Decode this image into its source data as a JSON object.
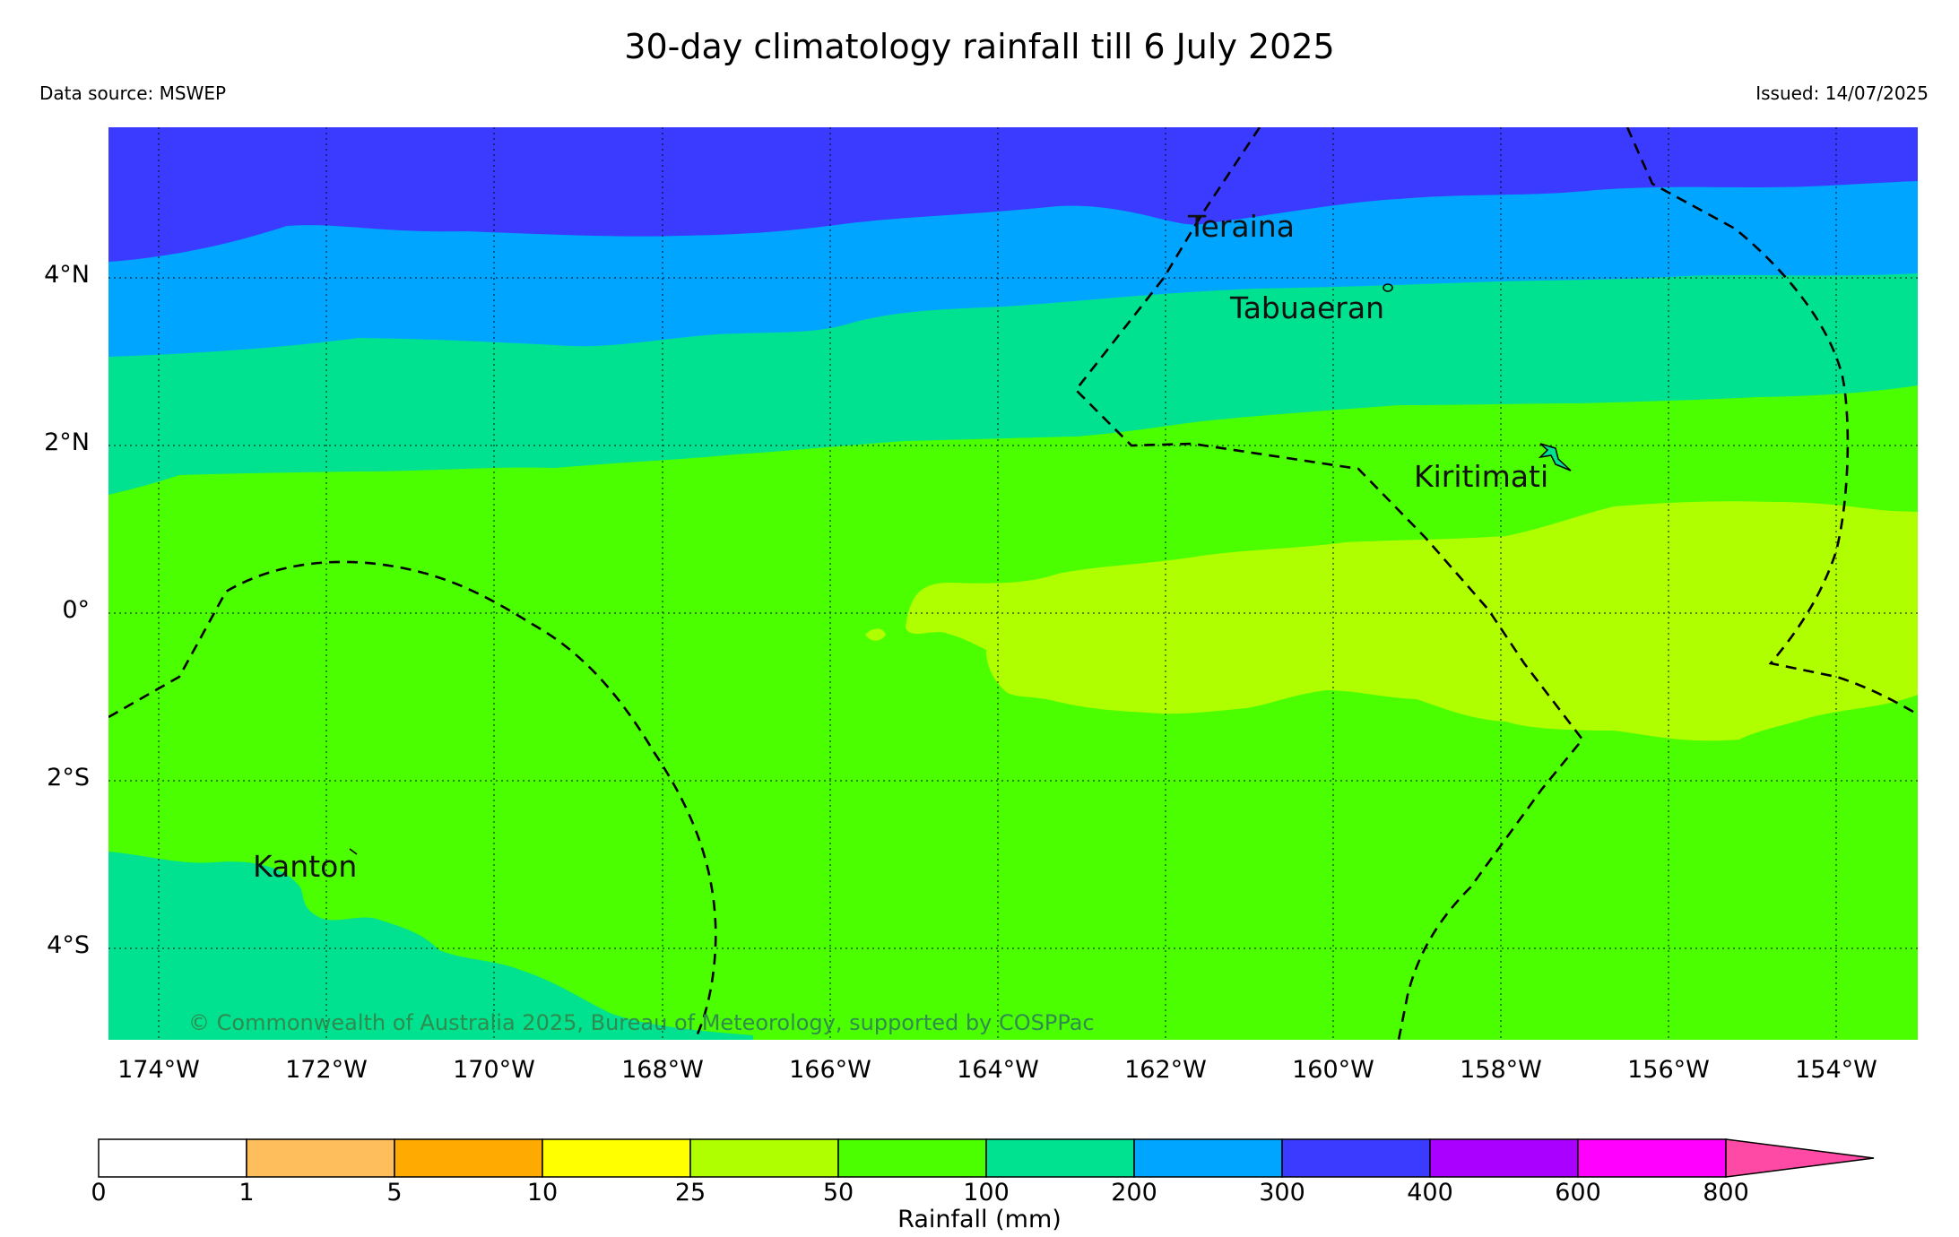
{
  "title": "30-day climatology rainfall till 6 July 2025",
  "data_source": "Data source: MSWEP",
  "issued": "Issued: 14/07/2025",
  "copyright": "© Commonwealth of Australia 2025, Bureau of Meteorology, supported by COSPPac",
  "lat_labels": [
    "4°N",
    "2°N",
    "0°",
    "2°S",
    "4°S"
  ],
  "lon_labels": [
    "174°W",
    "172°W",
    "170°W",
    "168°W",
    "166°W",
    "164°W",
    "162°W",
    "160°W",
    "158°W",
    "156°W",
    "154°W"
  ],
  "places": [
    "Teraina",
    "Tabuaeran",
    "Kiritimati",
    "Kanton"
  ],
  "colorbar": {
    "title": "Rainfall (mm)",
    "ticks": [
      "0",
      "1",
      "5",
      "10",
      "25",
      "50",
      "100",
      "200",
      "300",
      "400",
      "600",
      "800"
    ],
    "colors": [
      "#ffffff",
      "#ffbe5c",
      "#ffaa00",
      "#ffff00",
      "#b0ff00",
      "#4cff00",
      "#00e28f",
      "#00a5ff",
      "#3b3bff",
      "#aa00ff",
      "#ff00ff",
      "#ff4aa5"
    ]
  },
  "map_colors": {
    "300-400": "#3b3bff",
    "200-300": "#00a5ff",
    "100-200": "#00e28f",
    "50-100": "#4cff00",
    "25-50": "#b0ff00"
  }
}
